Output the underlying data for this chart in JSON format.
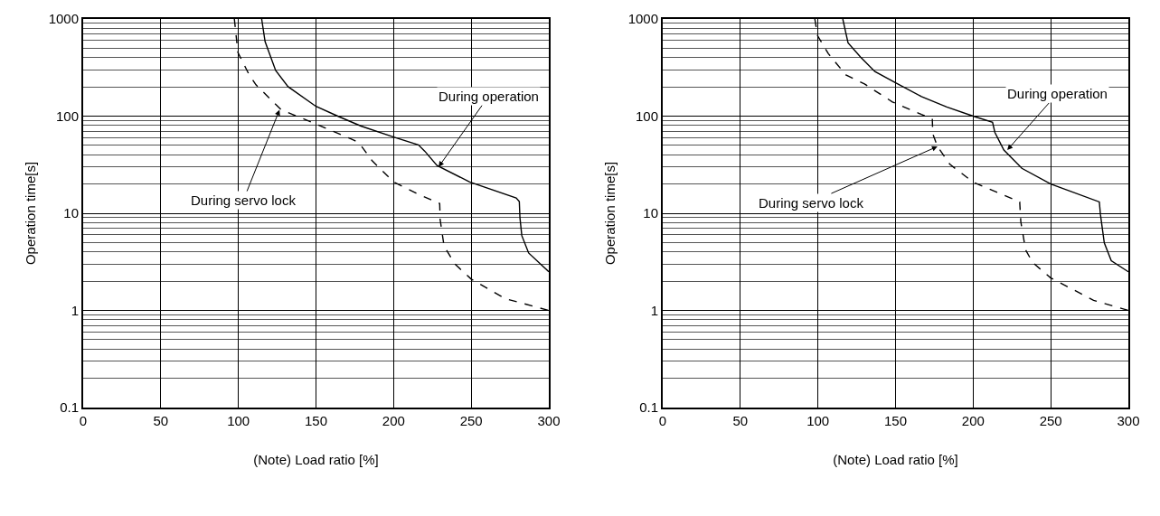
{
  "chart_data": [
    {
      "type": "line",
      "xlabel": "(Note) Load ratio [%]",
      "ylabel": "Operation time[s]",
      "xlim": [
        0,
        300
      ],
      "xticks": [
        0,
        50,
        100,
        150,
        200,
        250,
        300
      ],
      "ylim": [
        0.1,
        1000
      ],
      "yticks": [
        0.1,
        1,
        10,
        100,
        1000
      ],
      "log": "y",
      "grid": true,
      "marker": "none",
      "series": [
        {
          "color": "#000000",
          "line_style": "solid",
          "x": [
            115,
            117.2,
            124,
            132,
            150,
            164,
            179,
            200,
            216,
            220,
            228,
            249,
            279,
            281,
            281.4,
            282.6,
            287,
            300
          ],
          "values": [
            1000,
            585,
            295,
            201,
            126,
            100,
            79,
            61,
            50.6,
            43.7,
            31,
            21,
            14.4,
            13.2,
            9,
            5.9,
            3.9,
            2.5
          ]
        },
        {
          "color": "#000000",
          "line_style": "dashed",
          "x": [
            97.4,
            99.7,
            106.7,
            111.3,
            127.6,
            139,
            155.6,
            175,
            179,
            186,
            200,
            216,
            229.7,
            230,
            232.5,
            239.5,
            250,
            272,
            300
          ],
          "values": [
            1000,
            453,
            271,
            210,
            116,
            98,
            76,
            56,
            49.7,
            35,
            21,
            15.7,
            12.6,
            8.6,
            4.6,
            3,
            2.1,
            1.32,
            1
          ]
        }
      ],
      "annotations": [
        {
          "text": "During operation",
          "x": 229,
          "y": 30
        },
        {
          "text": "During servo lock",
          "x": 126.5,
          "y": 116
        }
      ]
    },
    {
      "type": "line",
      "xlabel": "(Note) Load ratio [%]",
      "ylabel": "Operation time[s]",
      "xlim": [
        0,
        300
      ],
      "xticks": [
        0,
        50,
        100,
        150,
        200,
        250,
        300
      ],
      "ylim": [
        0.1,
        1000
      ],
      "yticks": [
        0.1,
        1,
        10,
        100,
        1000
      ],
      "log": "y",
      "grid": true,
      "marker": "none",
      "series": [
        {
          "color": "#000000",
          "line_style": "solid",
          "x": [
            116,
            119.4,
            127.5,
            136.7,
            150.6,
            166.7,
            183,
            200,
            212.5,
            214,
            219.8,
            231.4,
            250,
            281.3,
            282,
            284.5,
            289,
            300
          ],
          "values": [
            1000,
            567,
            404,
            288,
            218,
            159,
            124,
            100,
            86.6,
            68,
            44.8,
            29,
            20,
            13.1,
            9.75,
            4.95,
            3.24,
            2.5
          ]
        },
        {
          "color": "#000000",
          "line_style": "dashed",
          "x": [
            98,
            99.8,
            106.7,
            118,
            130,
            148,
            166.7,
            173.7,
            174,
            177,
            185,
            200,
            230,
            230.7,
            233.8,
            238.4,
            250,
            277.6,
            300
          ],
          "values": [
            1000,
            672,
            440,
            265,
            214,
            140,
            104,
            94,
            65.5,
            48.7,
            31.9,
            20.9,
            13.1,
            8.2,
            4.2,
            3.1,
            2.16,
            1.27,
            1
          ]
        }
      ],
      "annotations": [
        {
          "text": "During operation",
          "x": 222,
          "y": 44.8
        },
        {
          "text": "During servo lock",
          "x": 177,
          "y": 48.7
        }
      ]
    }
  ]
}
